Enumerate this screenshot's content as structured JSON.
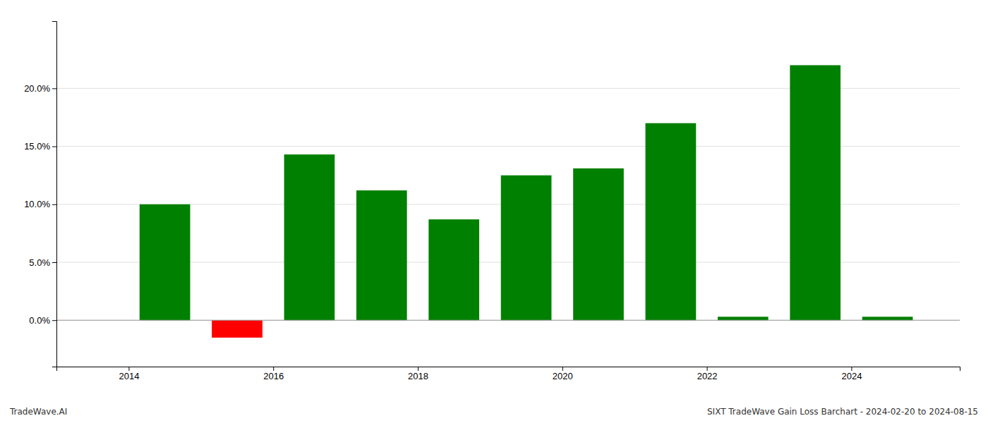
{
  "chart_data": {
    "type": "bar",
    "x": [
      2014.5,
      2015.5,
      2016.5,
      2017.5,
      2018.5,
      2019.5,
      2020.5,
      2021.5,
      2022.5,
      2023.5,
      2024.5
    ],
    "values": [
      0.1,
      -0.015,
      0.143,
      0.112,
      0.087,
      0.125,
      0.131,
      0.17,
      0.003,
      0.22,
      0.003
    ],
    "colors": [
      "#008000",
      "#ff0000",
      "#008000",
      "#008000",
      "#008000",
      "#008000",
      "#008000",
      "#008000",
      "#008000",
      "#008000",
      "#008000"
    ],
    "xlim": [
      2013.0,
      2025.5
    ],
    "xticks": [
      2014,
      2016,
      2018,
      2020,
      2022,
      2024
    ],
    "ylim": [
      -0.04,
      0.258
    ],
    "yticks": [
      {
        "value": 0.0,
        "label": "0.0%"
      },
      {
        "value": 0.05,
        "label": "5.0%"
      },
      {
        "value": 0.1,
        "label": "10.0%"
      },
      {
        "value": 0.15,
        "label": "15.0%"
      },
      {
        "value": 0.2,
        "label": "20.0%"
      }
    ],
    "grid": true,
    "annotations": [
      "TradeWave.AI",
      "SIXT TradeWave Gain Loss Barchart - 2024-02-20 to 2024-08-15"
    ]
  }
}
